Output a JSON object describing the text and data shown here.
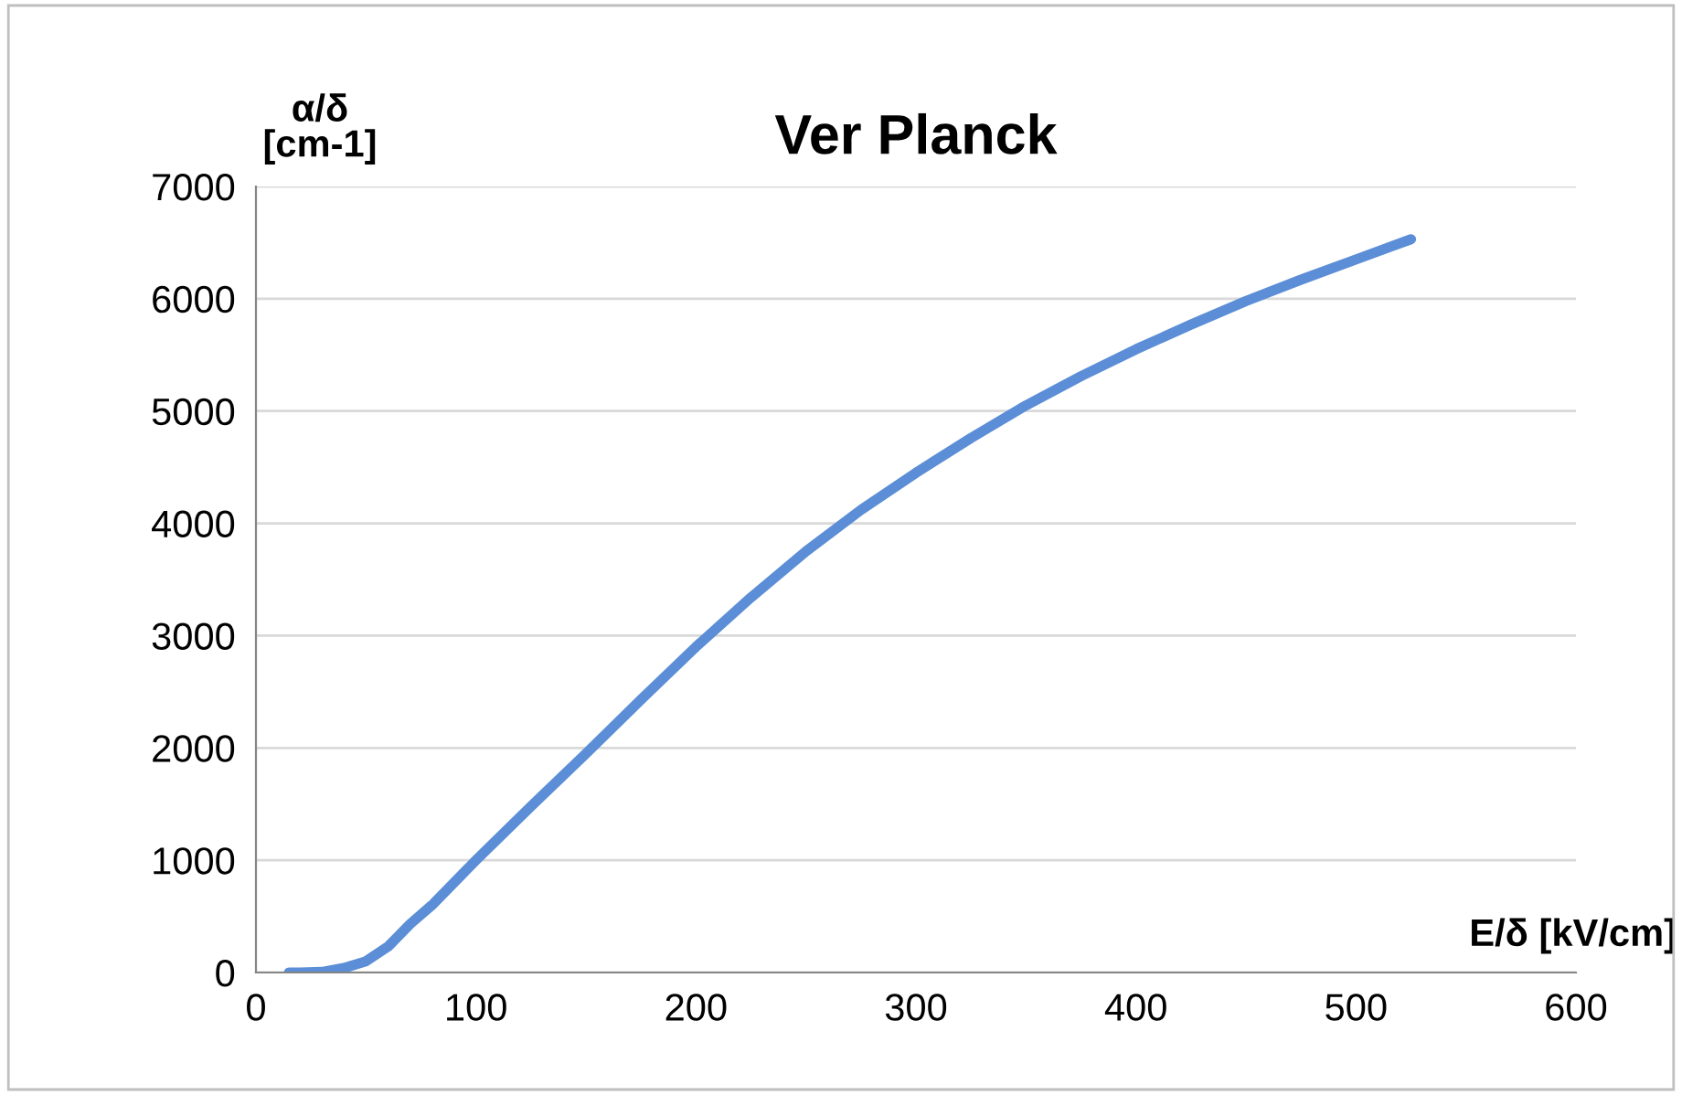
{
  "chart_data": {
    "type": "line",
    "title": "Ver Planck",
    "xlabel": "E/δ [kV/cm]",
    "ylabel": "α/δ\n[cm-1]",
    "series": [
      {
        "color": "#5b8ed6",
        "x": [
          15,
          20,
          30,
          40,
          50,
          60,
          70,
          80,
          100,
          125,
          150,
          175,
          200,
          225,
          250,
          275,
          300,
          325,
          350,
          375,
          400,
          425,
          450,
          475,
          500,
          525
        ],
        "values": [
          0,
          0,
          5,
          40,
          100,
          230,
          430,
          600,
          1000,
          1480,
          1950,
          2430,
          2900,
          3340,
          3750,
          4120,
          4450,
          4760,
          5050,
          5310,
          5550,
          5770,
          5980,
          6170,
          6350,
          6530
        ]
      }
    ],
    "xlim": [
      0,
      600
    ],
    "xticks": [
      0,
      100,
      200,
      300,
      400,
      500,
      600
    ],
    "ylim": [
      0,
      7000
    ],
    "yticks": [
      0,
      1000,
      2000,
      3000,
      4000,
      5000,
      6000,
      7000
    ],
    "grid": "y",
    "legend": false,
    "marker": "none",
    "line_style": "solid"
  }
}
